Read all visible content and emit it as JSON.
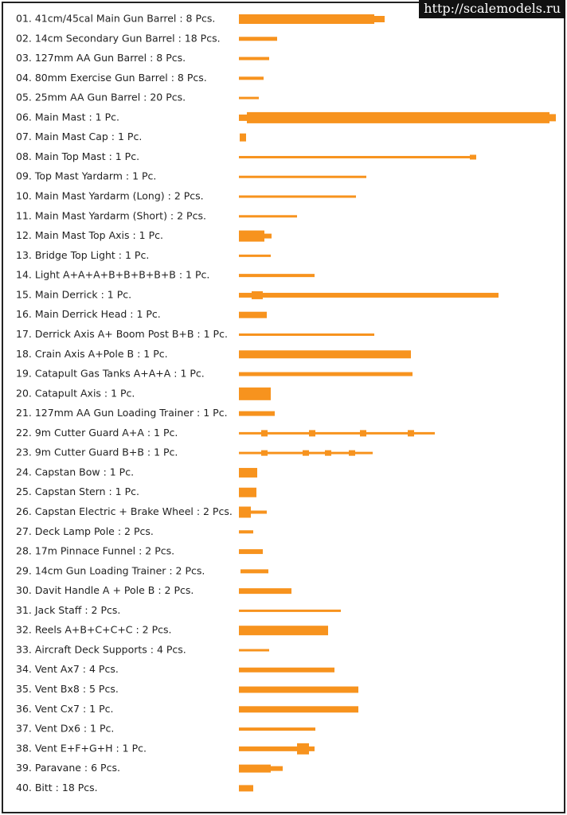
{
  "watermark": "http://scalemodels.ru",
  "items": [
    "01. 41cm/45cal Main Gun Barrel : 8 Pcs.",
    "02. 14cm Secondary Gun Barrel : 18 Pcs.",
    "03. 127mm AA Gun Barrel : 8 Pcs.",
    "04. 80mm Exercise Gun Barrel : 8 Pcs.",
    "05. 25mm AA Gun Barrel : 20 Pcs.",
    "06. Main Mast : 1 Pc.",
    "07. Main Mast Cap : 1 Pc.",
    "08. Main Top Mast : 1 Pc.",
    "09. Top Mast Yardarm : 1 Pc.",
    "10. Main Mast Yardarm (Long) : 2 Pcs.",
    "11. Main Mast Yardarm (Short) : 2 Pcs.",
    "12. Main Mast Top Axis : 1 Pc.",
    "13. Bridge Top Light : 1 Pc.",
    "14. Light A+A+A+B+B+B+B+B : 1 Pc.",
    "15. Main Derrick : 1 Pc.",
    "16. Main Derrick Head : 1 Pc.",
    "17. Derrick Axis A+ Boom Post B+B : 1 Pc.",
    "18. Crain Axis A+Pole B : 1 Pc.",
    "19. Catapult Gas Tanks A+A+A : 1 Pc.",
    "20. Catapult Axis : 1 Pc.",
    "21. 127mm AA Gun Loading Trainer : 1 Pc.",
    "22. 9m Cutter Guard A+A : 1 Pc.",
    "23. 9m Cutter Guard B+B : 1 Pc.",
    "24. Capstan Bow : 1 Pc.",
    "25. Capstan Stern : 1 Pc.",
    "26. Capstan Electric + Brake Wheel : 2 Pcs.",
    "27. Deck Lamp Pole : 2 Pcs.",
    "28. 17m Pinnace Funnel : 2 Pcs.",
    "29. 14cm Gun Loading Trainer  : 2 Pcs.",
    "30. Davit Handle A + Pole B : 2 Pcs.",
    "31. Jack Staff : 2 Pcs.",
    "32. Reels A+B+C+C+C : 2 Pcs.",
    "33. Aircraft Deck Supports : 4 Pcs.",
    "34. Vent Ax7 : 4 Pcs.",
    "35. Vent Bx8 : 5 Pcs.",
    "36. Vent Cx7 : 1 Pc.",
    "37. Vent Dx6 : 1 Pc.",
    "38. Vent E+F+G+H : 1 Pc.",
    "39. Paravane : 6 Pcs.",
    "40. Bitt : 18 Pcs."
  ]
}
